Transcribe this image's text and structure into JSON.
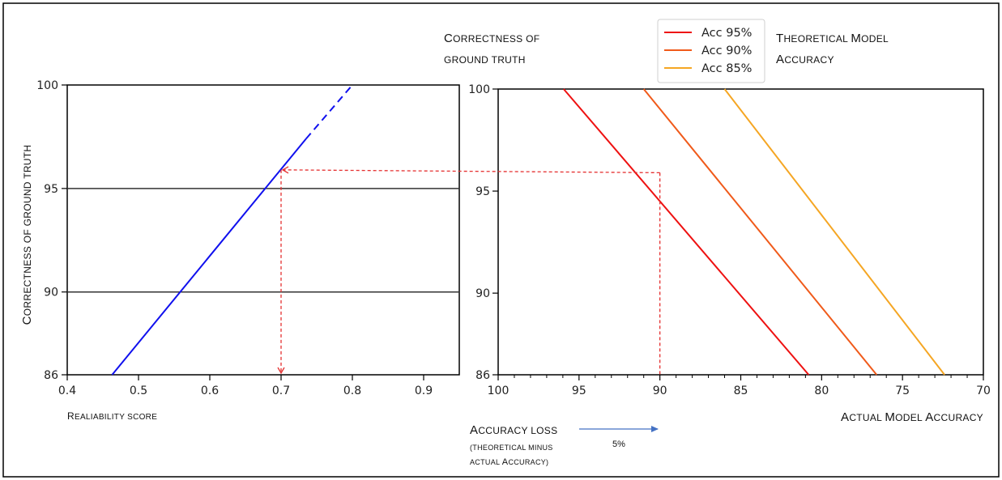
{
  "chart_data": [
    {
      "type": "line",
      "xlabel": "Realiability score",
      "ylabel": "Correctness of ground truth",
      "xlim": [
        0.4,
        0.95
      ],
      "ylim": [
        86,
        100
      ],
      "xticks": [
        0.4,
        0.5,
        0.6,
        0.7,
        0.8,
        0.9
      ],
      "xtick_labels": [
        "0.4",
        "0.5",
        "0.6",
        "0.7",
        "0.8",
        "0.9"
      ],
      "yticks": [
        86,
        90,
        95,
        100
      ],
      "ytick_labels": [
        "86",
        "90",
        "95",
        "100"
      ],
      "hlines": [
        90,
        95
      ],
      "series": [
        {
          "style": "solid",
          "color": "#1010ee",
          "x": [
            0.463,
            0.735
          ],
          "y": [
            86,
            97.4
          ]
        },
        {
          "style": "dashed",
          "color": "#1010ee",
          "x": [
            0.735,
            0.8
          ],
          "y": [
            97.4,
            100
          ]
        }
      ],
      "annotations": [
        {
          "type": "arrow-dashed",
          "color": "#e53030",
          "from": [
            0.7,
            95.9
          ],
          "to": [
            0.7,
            86
          ]
        }
      ]
    },
    {
      "type": "line",
      "title": "Correctness of ground truth",
      "xlabel": "Actual Model Accuracy",
      "xlim": [
        100,
        70
      ],
      "ylim": [
        86,
        100
      ],
      "xticks": [
        100,
        95,
        90,
        85,
        80,
        75,
        70
      ],
      "xtick_labels": [
        "100",
        "95",
        "90",
        "85",
        "80",
        "75",
        "70"
      ],
      "yticks": [
        86,
        90,
        95,
        100
      ],
      "ytick_labels": [
        "86",
        "90",
        "95",
        "100"
      ],
      "legend_title": "Theoretical Model Accuracy",
      "legend_position": "top",
      "series": [
        {
          "name": "Acc 95%",
          "color": "#ee1111",
          "x": [
            95.95,
            80.8
          ],
          "y": [
            100,
            86
          ]
        },
        {
          "name": "Acc 90%",
          "color": "#f05a1a",
          "x": [
            91.0,
            76.6
          ],
          "y": [
            100,
            86
          ]
        },
        {
          "name": "Acc 85%",
          "color": "#f5a623",
          "x": [
            86.0,
            72.4
          ],
          "y": [
            100,
            86
          ]
        }
      ],
      "annotations": [
        {
          "type": "arrow-dashed",
          "color": "#e53030",
          "from": [
            90,
            95.9
          ],
          "to": [
            0.7,
            95.9
          ],
          "target_panel": 0
        },
        {
          "type": "line-dashed",
          "color": "#e53030",
          "from": [
            90,
            95.9
          ],
          "to": [
            90,
            86
          ]
        }
      ]
    }
  ],
  "texts": {
    "accuracy_loss_title": "Accuracy loss",
    "accuracy_loss_sub1": "(theoretical minus",
    "accuracy_loss_sub2": "actual Accuracy)",
    "arrow_note": "5%"
  }
}
